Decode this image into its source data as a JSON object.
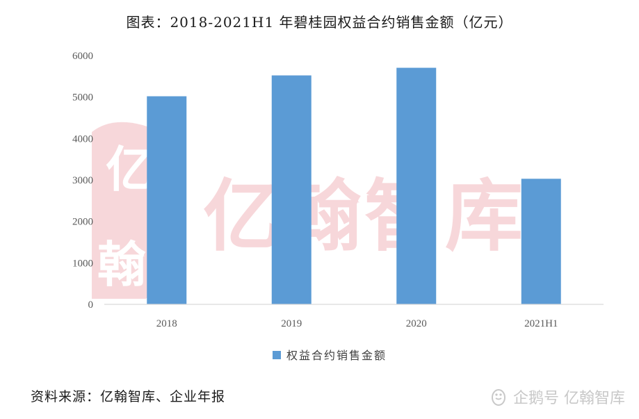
{
  "title": "图表：2018-2021H1 年碧桂园权益合约销售金额（亿元）",
  "source": "资料来源：亿翰智库、企业年报",
  "watermark": {
    "text": "亿翰智库",
    "logo_chars": [
      "亿",
      "翰"
    ],
    "color": "#f2b8bd"
  },
  "footer_brand": {
    "icon": "penguin-icon",
    "text": "企鹅号 亿翰智库"
  },
  "colors": {
    "bar": "#5b9bd5",
    "axis": "#d9d9d9"
  },
  "chart_data": {
    "type": "bar",
    "categories": [
      "2018",
      "2019",
      "2020",
      "2021H1"
    ],
    "series": [
      {
        "name": "权益合约销售金额",
        "values": [
          5019,
          5522,
          5706,
          3029
        ]
      }
    ],
    "ylim": [
      0,
      6000
    ],
    "yticks": [
      0,
      1000,
      2000,
      3000,
      4000,
      5000,
      6000
    ],
    "xlabel": "",
    "ylabel": "",
    "grid": false,
    "legend_position": "bottom"
  }
}
